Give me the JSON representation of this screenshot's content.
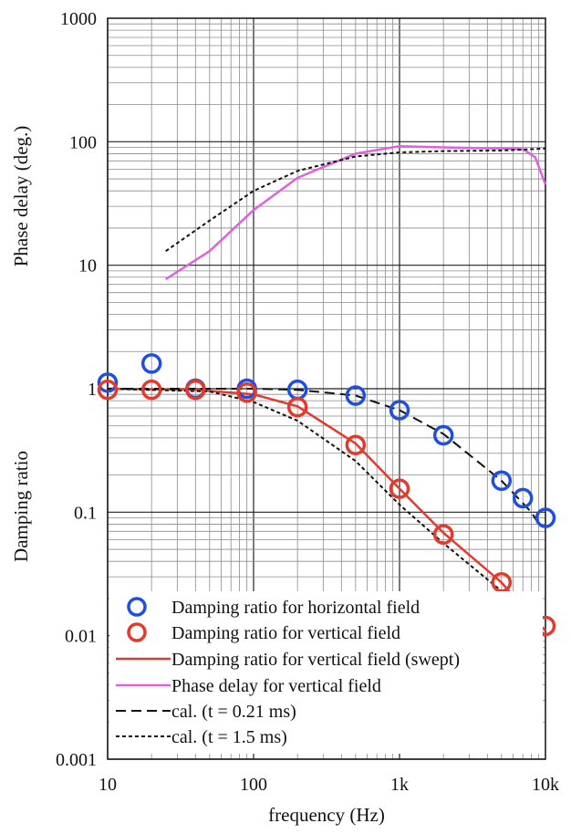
{
  "chart_data": {
    "type": "scatter",
    "x_scale": "log",
    "y_scale": "log",
    "xlim": [
      10,
      10000
    ],
    "ylim": [
      0.001,
      1000
    ],
    "grid": true,
    "legend_position": "bottom-right",
    "xlabel": "frequency (Hz)",
    "ylabel_upper": "Phase delay (deg.)",
    "ylabel_lower": "Damping ratio",
    "x_ticks": [
      {
        "value": 10,
        "label": "10"
      },
      {
        "value": 100,
        "label": "100"
      },
      {
        "value": 1000,
        "label": "1k"
      },
      {
        "value": 10000,
        "label": "10k"
      }
    ],
    "y_ticks": [
      {
        "value": 1000,
        "label": "1000"
      },
      {
        "value": 100,
        "label": "100"
      },
      {
        "value": 10,
        "label": "10"
      },
      {
        "value": 1,
        "label": "1"
      },
      {
        "value": 0.1,
        "label": "0.1"
      },
      {
        "value": 0.01,
        "label": "0.01"
      },
      {
        "value": 0.001,
        "label": "0.001"
      }
    ],
    "series": [
      {
        "name": "Damping ratio for horizontal field",
        "kind": "markers",
        "color": "#1f4fe0",
        "points": [
          [
            10,
            1.12
          ],
          [
            20,
            1.6
          ],
          [
            40,
            1.0
          ],
          [
            90,
            1.0
          ],
          [
            200,
            0.98
          ],
          [
            500,
            0.88
          ],
          [
            1000,
            0.67
          ],
          [
            2000,
            0.42
          ],
          [
            5000,
            0.18
          ],
          [
            7000,
            0.13
          ],
          [
            10000,
            0.09
          ]
        ]
      },
      {
        "name": "Damping ratio for vertical field",
        "kind": "markers",
        "color": "#e43a2c",
        "points": [
          [
            10,
            0.98
          ],
          [
            20,
            0.98
          ],
          [
            40,
            0.98
          ],
          [
            90,
            0.93
          ],
          [
            200,
            0.71
          ],
          [
            500,
            0.35
          ],
          [
            1000,
            0.155
          ],
          [
            2000,
            0.066
          ],
          [
            5000,
            0.027
          ],
          [
            7000,
            0.018
          ],
          [
            10000,
            0.012
          ]
        ]
      },
      {
        "name": "Damping ratio for vertical field (swept)",
        "kind": "line",
        "color": "#e43a2c",
        "points": [
          [
            10,
            1.0
          ],
          [
            40,
            0.98
          ],
          [
            100,
            0.9
          ],
          [
            200,
            0.72
          ],
          [
            500,
            0.36
          ],
          [
            1000,
            0.155
          ],
          [
            2000,
            0.068
          ],
          [
            5000,
            0.027
          ],
          [
            7000,
            0.017
          ],
          [
            10000,
            0.011
          ]
        ]
      },
      {
        "name": "Phase delay for vertical field",
        "kind": "line",
        "color": "#e060e0",
        "points": [
          [
            25,
            7.7
          ],
          [
            50,
            13
          ],
          [
            100,
            28
          ],
          [
            200,
            51
          ],
          [
            500,
            80
          ],
          [
            1000,
            92
          ],
          [
            2000,
            90
          ],
          [
            5000,
            88
          ],
          [
            7000,
            87
          ],
          [
            8500,
            75
          ],
          [
            10000,
            45
          ]
        ]
      },
      {
        "name": "cal. (t = 0.21 ms)",
        "kind": "line",
        "dash": "long",
        "color": "#111111",
        "points": [
          [
            10,
            1.0
          ],
          [
            100,
            1.0
          ],
          [
            200,
            0.98
          ],
          [
            500,
            0.88
          ],
          [
            1000,
            0.67
          ],
          [
            2000,
            0.43
          ],
          [
            5000,
            0.18
          ],
          [
            8000,
            0.1
          ],
          [
            9000,
            0.08
          ]
        ]
      },
      {
        "name": "cal. (t = 1.5 ms)",
        "kind": "line",
        "dash": "short",
        "color": "#111111",
        "points_lower": [
          [
            10,
            1.0
          ],
          [
            50,
            0.95
          ],
          [
            100,
            0.78
          ],
          [
            200,
            0.55
          ],
          [
            500,
            0.26
          ],
          [
            1000,
            0.115
          ],
          [
            2000,
            0.056
          ],
          [
            5000,
            0.023
          ],
          [
            7000,
            0.016
          ],
          [
            10000,
            0.01
          ]
        ],
        "points_upper": [
          [
            25,
            13
          ],
          [
            50,
            23
          ],
          [
            100,
            40
          ],
          [
            200,
            58
          ],
          [
            500,
            76
          ],
          [
            1000,
            82
          ],
          [
            2000,
            84
          ],
          [
            5000,
            85
          ],
          [
            10000,
            88
          ]
        ]
      }
    ]
  }
}
